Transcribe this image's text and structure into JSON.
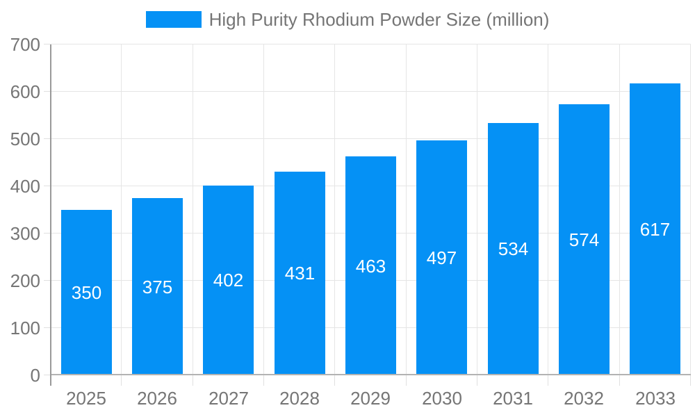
{
  "chart_data": {
    "type": "bar",
    "title": "High Purity Rhodium Powder Size (million)",
    "legend": {
      "label": "High Purity Rhodium Powder Size (million)",
      "position": "top"
    },
    "categories": [
      "2025",
      "2026",
      "2027",
      "2028",
      "2029",
      "2030",
      "2031",
      "2032",
      "2033"
    ],
    "series": [
      {
        "name": "High Purity Rhodium Powder Size (million)",
        "values": [
          350,
          375,
          402,
          431,
          463,
          497,
          534,
          574,
          617
        ]
      }
    ],
    "value_labels": [
      "350",
      "375",
      "402",
      "431",
      "463",
      "497",
      "534",
      "574",
      "617"
    ],
    "value_label_position": "center-inside",
    "xlabel": "",
    "ylabel": "",
    "ylim": [
      0,
      700
    ],
    "ytick_step": 100,
    "yticks": [
      0,
      100,
      200,
      300,
      400,
      500,
      600,
      700
    ],
    "grid": true,
    "colors": {
      "bar": "#0591f5",
      "value_label": "#ffffff",
      "axis_text": "#757575",
      "gridline": "#e5e5e5",
      "tick": "#e0e0e0",
      "y_axis_line": "#999999",
      "x_axis_line": "#b3b3b3",
      "background": "#ffffff"
    }
  }
}
